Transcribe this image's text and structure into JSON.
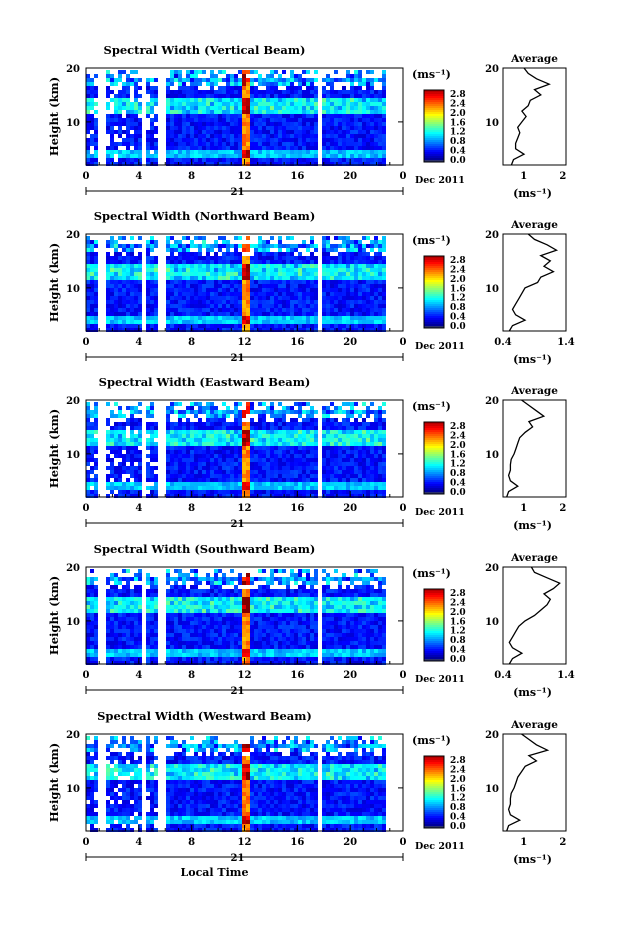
{
  "chart_data": [
    {
      "type": "heatmap",
      "title": "Spectral Width (Vertical Beam)",
      "ylabel": "Height (km)",
      "ylim": [
        2,
        20
      ],
      "xlim": [
        0,
        24
      ],
      "xticks": [
        "0",
        "4",
        "8",
        "12",
        "16",
        "20",
        "0"
      ],
      "yticks": [
        "20",
        "10"
      ],
      "date_label": "21",
      "date_suffix": "Dec 2011",
      "colorbar": {
        "unit": "(ms⁻¹)",
        "ticks": [
          "2.8",
          "2.4",
          "2.0",
          "1.6",
          "1.2",
          "0.8",
          "0.4",
          "0.0"
        ],
        "range": [
          0,
          3.0
        ]
      },
      "gaps_hours": [
        [
          0.8,
          1.0
        ],
        [
          1.2,
          1.45
        ],
        [
          4.1,
          4.5
        ],
        [
          5.3,
          5.8
        ],
        [
          17.5,
          17.7
        ]
      ],
      "profile": {
        "title": "Average",
        "xlabel": "(ms⁻¹)",
        "xlim": [
          0.5,
          2.0
        ],
        "xticks": [
          "1",
          "2"
        ],
        "yticks": [
          "20",
          "10"
        ],
        "height_km": [
          2,
          3,
          4,
          5,
          6,
          7,
          8,
          9,
          10,
          11,
          12,
          13,
          14,
          15,
          16,
          17,
          18,
          19,
          20
        ],
        "width": [
          0.7,
          0.75,
          1.0,
          0.8,
          0.8,
          0.85,
          0.9,
          0.85,
          0.95,
          1.05,
          0.95,
          1.1,
          1.15,
          1.4,
          1.25,
          1.6,
          1.3,
          1.1,
          1.0
        ]
      }
    },
    {
      "type": "heatmap",
      "title": "Spectral Width (Northward Beam)",
      "ylabel": "Height (km)",
      "ylim": [
        2,
        20
      ],
      "xlim": [
        0,
        24
      ],
      "xticks": [
        "0",
        "4",
        "8",
        "12",
        "16",
        "20",
        "0"
      ],
      "yticks": [
        "20",
        "10"
      ],
      "date_label": "21",
      "date_suffix": "Dec 2011",
      "colorbar": {
        "unit": "(ms⁻¹)",
        "ticks": [
          "2.8",
          "2.4",
          "2.0",
          "1.6",
          "1.2",
          "0.8",
          "0.4",
          "0.0"
        ],
        "range": [
          0,
          3.0
        ]
      },
      "gaps_hours": [
        [
          0.8,
          1.0
        ],
        [
          1.2,
          1.45
        ],
        [
          4.1,
          4.5
        ],
        [
          5.3,
          5.8
        ],
        [
          17.5,
          17.7
        ]
      ],
      "profile": {
        "title": "Average",
        "xlabel": "(ms⁻¹)",
        "xlim": [
          0.4,
          1.4
        ],
        "xticks": [
          "0.4",
          "1.4"
        ],
        "yticks": [
          "20",
          "10"
        ],
        "height_km": [
          2,
          3,
          4,
          5,
          6,
          7,
          8,
          9,
          10,
          11,
          12,
          13,
          14,
          15,
          16,
          17,
          18,
          19,
          20
        ],
        "width": [
          0.5,
          0.55,
          0.75,
          0.6,
          0.55,
          0.6,
          0.65,
          0.7,
          0.75,
          0.95,
          1.0,
          1.2,
          1.05,
          1.15,
          1.0,
          1.25,
          1.1,
          0.9,
          0.8
        ]
      }
    },
    {
      "type": "heatmap",
      "title": "Spectral Width (Eastward Beam)",
      "ylabel": "Height (km)",
      "ylim": [
        2,
        20
      ],
      "xlim": [
        0,
        24
      ],
      "xticks": [
        "0",
        "4",
        "8",
        "12",
        "16",
        "20",
        "0"
      ],
      "yticks": [
        "20",
        "10"
      ],
      "date_label": "21",
      "date_suffix": "Dec 2011",
      "colorbar": {
        "unit": "(ms⁻¹)",
        "ticks": [
          "2.8",
          "2.4",
          "2.0",
          "1.6",
          "1.2",
          "0.8",
          "0.4",
          "0.0"
        ],
        "range": [
          0,
          3.0
        ]
      },
      "gaps_hours": [
        [
          0.8,
          1.0
        ],
        [
          1.2,
          1.45
        ],
        [
          4.1,
          4.5
        ],
        [
          5.3,
          5.8
        ],
        [
          17.5,
          17.7
        ]
      ],
      "profile": {
        "title": "Average",
        "xlabel": "(ms⁻¹)",
        "xlim": [
          0.5,
          2.2
        ],
        "xticks": [
          "1",
          "2"
        ],
        "yticks": [
          "20",
          "10"
        ],
        "height_km": [
          2,
          3,
          4,
          5,
          6,
          7,
          8,
          9,
          10,
          11,
          12,
          13,
          14,
          15,
          16,
          17,
          18,
          19,
          20
        ],
        "width": [
          0.6,
          0.65,
          0.9,
          0.7,
          0.65,
          0.7,
          0.7,
          0.72,
          0.8,
          0.85,
          0.9,
          0.95,
          1.1,
          1.3,
          1.2,
          1.6,
          1.4,
          1.2,
          1.0
        ]
      }
    },
    {
      "type": "heatmap",
      "title": "Spectral Width (Southward Beam)",
      "ylabel": "Height (km)",
      "ylim": [
        2,
        20
      ],
      "xlim": [
        0,
        24
      ],
      "xticks": [
        "0",
        "4",
        "8",
        "12",
        "16",
        "20",
        "0"
      ],
      "yticks": [
        "20",
        "10"
      ],
      "date_label": "21",
      "date_suffix": "Dec 2011",
      "colorbar": {
        "unit": "(ms⁻¹)",
        "ticks": [
          "2.8",
          "2.4",
          "2.0",
          "1.6",
          "1.2",
          "0.8",
          "0.4",
          "0.0"
        ],
        "range": [
          0,
          3.0
        ]
      },
      "gaps_hours": [
        [
          0.8,
          1.0
        ],
        [
          1.2,
          1.45
        ],
        [
          4.1,
          4.5
        ],
        [
          5.3,
          5.8
        ],
        [
          17.5,
          17.7
        ]
      ],
      "profile": {
        "title": "Average",
        "xlabel": "(ms⁻¹)",
        "xlim": [
          0.4,
          1.4
        ],
        "xticks": [
          "0.4",
          "1.4"
        ],
        "yticks": [
          "20",
          "10"
        ],
        "height_km": [
          2,
          3,
          4,
          5,
          6,
          7,
          8,
          9,
          10,
          11,
          12,
          13,
          14,
          15,
          16,
          17,
          18,
          19,
          20
        ],
        "width": [
          0.5,
          0.55,
          0.7,
          0.55,
          0.5,
          0.55,
          0.6,
          0.65,
          0.75,
          0.9,
          1.0,
          1.1,
          1.15,
          1.05,
          1.2,
          1.3,
          1.1,
          0.9,
          0.85
        ]
      }
    },
    {
      "type": "heatmap",
      "title": "Spectral Width (Westward Beam)",
      "ylabel": "Height (km)",
      "xlabel": "Local Time",
      "ylim": [
        2,
        20
      ],
      "xlim": [
        0,
        24
      ],
      "xticks": [
        "0",
        "4",
        "8",
        "12",
        "16",
        "20",
        "0"
      ],
      "yticks": [
        "20",
        "10"
      ],
      "date_label": "21",
      "date_suffix": "Dec 2011",
      "colorbar": {
        "unit": "(ms⁻¹)",
        "ticks": [
          "2.8",
          "2.4",
          "2.0",
          "1.6",
          "1.2",
          "0.8",
          "0.4",
          "0.0"
        ],
        "range": [
          0,
          3.0
        ]
      },
      "gaps_hours": [
        [
          0.8,
          1.0
        ],
        [
          1.2,
          1.45
        ],
        [
          4.1,
          4.5
        ],
        [
          5.3,
          5.8
        ],
        [
          17.5,
          17.7
        ]
      ],
      "profile": {
        "title": "Average",
        "xlabel": "(ms⁻¹)",
        "xlim": [
          0.5,
          2.2
        ],
        "xticks": [
          "1",
          "2"
        ],
        "yticks": [
          "20",
          "10"
        ],
        "height_km": [
          2,
          3,
          4,
          5,
          6,
          7,
          8,
          9,
          10,
          11,
          12,
          13,
          14,
          15,
          16,
          17,
          18,
          19,
          20
        ],
        "width": [
          0.6,
          0.65,
          0.95,
          0.7,
          0.65,
          0.7,
          0.7,
          0.72,
          0.8,
          0.85,
          0.9,
          1.0,
          1.1,
          1.4,
          1.2,
          1.7,
          1.4,
          1.2,
          1.0
        ]
      }
    }
  ]
}
